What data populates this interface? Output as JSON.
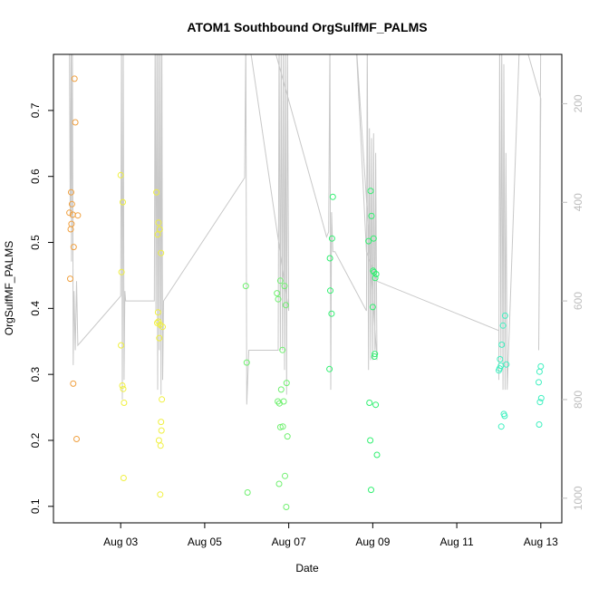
{
  "chart_data": {
    "type": "scatter",
    "title": "ATOM1 Southbound OrgSulfMF_PALMS",
    "xlabel": "Date",
    "ylabel": "OrgSulfMF_PALMS",
    "x_ticks": [
      "Aug 03",
      "Aug 05",
      "Aug 07",
      "Aug 09",
      "Aug 11",
      "Aug 13"
    ],
    "x_tick_values": [
      3,
      5,
      7,
      9,
      11,
      13
    ],
    "xlim": [
      1.4,
      13.5
    ],
    "ylim": [
      0.075,
      0.785
    ],
    "y_ticks": [
      0.1,
      0.2,
      0.3,
      0.4,
      0.5,
      0.6,
      0.7
    ],
    "y_tick_labels": [
      "0.1",
      "0.2",
      "0.3",
      "0.4",
      "0.5",
      "0.6",
      "0.7"
    ],
    "right_axis": {
      "label": "",
      "ticks": [
        200,
        400,
        600,
        800,
        1000
      ],
      "tick_labels": [
        "200",
        "400",
        "600",
        "800",
        "1000"
      ],
      "lim": [
        100,
        1050
      ],
      "reversed": true,
      "color": "#bdbdbd"
    },
    "grid": false,
    "legend": "none",
    "series": [
      {
        "color": "#f0a040",
        "points": [
          [
            1.9,
            0.748
          ],
          [
            1.92,
            0.682
          ],
          [
            1.82,
            0.576
          ],
          [
            1.84,
            0.558
          ],
          [
            1.78,
            0.545
          ],
          [
            1.86,
            0.542
          ],
          [
            1.98,
            0.541
          ],
          [
            1.83,
            0.528
          ],
          [
            1.81,
            0.52
          ],
          [
            1.88,
            0.493
          ],
          [
            1.8,
            0.445
          ],
          [
            1.87,
            0.286
          ],
          [
            1.95,
            0.202
          ]
        ]
      },
      {
        "color": "#f0f040",
        "points": [
          [
            3.0,
            0.602
          ],
          [
            3.05,
            0.561
          ],
          [
            3.02,
            0.455
          ],
          [
            3.01,
            0.344
          ],
          [
            3.04,
            0.283
          ],
          [
            3.06,
            0.278
          ],
          [
            3.08,
            0.257
          ],
          [
            3.07,
            0.143
          ],
          [
            3.85,
            0.576
          ],
          [
            3.9,
            0.53
          ],
          [
            3.93,
            0.52
          ],
          [
            3.88,
            0.512
          ],
          [
            3.96,
            0.484
          ],
          [
            3.89,
            0.394
          ],
          [
            3.87,
            0.378
          ],
          [
            3.9,
            0.38
          ],
          [
            3.94,
            0.375
          ],
          [
            4.0,
            0.372
          ],
          [
            3.92,
            0.355
          ],
          [
            3.98,
            0.262
          ],
          [
            3.96,
            0.228
          ],
          [
            3.97,
            0.215
          ],
          [
            3.91,
            0.2
          ],
          [
            3.95,
            0.192
          ],
          [
            3.94,
            0.118
          ]
        ]
      },
      {
        "color": "#70f070",
        "points": [
          [
            5.98,
            0.434
          ],
          [
            6.0,
            0.318
          ],
          [
            6.02,
            0.121
          ],
          [
            6.72,
            0.423
          ],
          [
            6.8,
            0.442
          ],
          [
            6.9,
            0.434
          ],
          [
            6.75,
            0.414
          ],
          [
            6.93,
            0.405
          ],
          [
            6.85,
            0.337
          ],
          [
            6.95,
            0.287
          ],
          [
            6.82,
            0.277
          ],
          [
            6.74,
            0.259
          ],
          [
            6.88,
            0.259
          ],
          [
            6.78,
            0.256
          ],
          [
            6.8,
            0.22
          ],
          [
            6.86,
            0.221
          ],
          [
            6.97,
            0.206
          ],
          [
            6.91,
            0.146
          ],
          [
            6.77,
            0.134
          ],
          [
            6.94,
            0.099
          ]
        ]
      },
      {
        "color": "#30f070",
        "points": [
          [
            8.05,
            0.569
          ],
          [
            8.03,
            0.506
          ],
          [
            7.98,
            0.476
          ],
          [
            7.99,
            0.427
          ],
          [
            8.02,
            0.392
          ],
          [
            7.97,
            0.308
          ],
          [
            8.95,
            0.578
          ],
          [
            8.97,
            0.54
          ],
          [
            9.02,
            0.506
          ],
          [
            8.9,
            0.502
          ],
          [
            9.01,
            0.457
          ],
          [
            9.03,
            0.455
          ],
          [
            9.08,
            0.452
          ],
          [
            9.06,
            0.446
          ],
          [
            9.0,
            0.402
          ],
          [
            9.05,
            0.331
          ],
          [
            9.04,
            0.327
          ],
          [
            8.92,
            0.257
          ],
          [
            9.07,
            0.254
          ],
          [
            8.94,
            0.2
          ],
          [
            9.1,
            0.178
          ],
          [
            8.96,
            0.125
          ]
        ]
      },
      {
        "color": "#40f0c0",
        "points": [
          [
            12.15,
            0.389
          ],
          [
            12.1,
            0.374
          ],
          [
            12.07,
            0.345
          ],
          [
            12.03,
            0.323
          ],
          [
            12.18,
            0.315
          ],
          [
            12.05,
            0.313
          ],
          [
            12.02,
            0.309
          ],
          [
            12.0,
            0.306
          ],
          [
            12.12,
            0.24
          ],
          [
            12.14,
            0.237
          ],
          [
            12.06,
            0.221
          ],
          [
            13.0,
            0.312
          ],
          [
            12.97,
            0.304
          ],
          [
            12.95,
            0.288
          ],
          [
            13.01,
            0.264
          ],
          [
            12.98,
            0.258
          ],
          [
            12.96,
            0.224
          ]
        ]
      }
    ],
    "altitude_line": {
      "color": "#c8c8c8",
      "points": [
        [
          1.78,
          70
        ],
        [
          1.8,
          430
        ],
        [
          1.82,
          70
        ],
        [
          1.83,
          520
        ],
        [
          1.85,
          70
        ],
        [
          1.87,
          730
        ],
        [
          1.89,
          580
        ],
        [
          1.92,
          700
        ],
        [
          1.95,
          560
        ],
        [
          1.98,
          690
        ],
        [
          3.0,
          590
        ],
        [
          3.02,
          70
        ],
        [
          3.04,
          800
        ],
        [
          3.06,
          70
        ],
        [
          3.08,
          760
        ],
        [
          3.1,
          580
        ],
        [
          3.12,
          600
        ],
        [
          3.8,
          600
        ],
        [
          3.82,
          70
        ],
        [
          3.84,
          620
        ],
        [
          3.86,
          70
        ],
        [
          3.88,
          780
        ],
        [
          3.9,
          70
        ],
        [
          3.92,
          700
        ],
        [
          3.94,
          70
        ],
        [
          3.96,
          790
        ],
        [
          3.98,
          70
        ],
        [
          4.0,
          760
        ],
        [
          4.02,
          600
        ],
        [
          5.95,
          350
        ],
        [
          5.98,
          70
        ],
        [
          6.0,
          810
        ],
        [
          6.05,
          700
        ],
        [
          6.75,
          700
        ],
        [
          6.77,
          70
        ],
        [
          6.8,
          700
        ],
        [
          6.82,
          70
        ],
        [
          6.85,
          700
        ],
        [
          6.87,
          70
        ],
        [
          6.9,
          740
        ],
        [
          6.92,
          70
        ],
        [
          6.95,
          790
        ],
        [
          6.97,
          70
        ],
        [
          7.0,
          620
        ],
        [
          6.0,
          40
        ],
        [
          6.5,
          40
        ],
        [
          7.9,
          470
        ],
        [
          7.95,
          460
        ],
        [
          7.98,
          70
        ],
        [
          8.0,
          780
        ],
        [
          8.02,
          420
        ],
        [
          8.05,
          500
        ],
        [
          8.1,
          500
        ],
        [
          8.85,
          620
        ],
        [
          8.87,
          70
        ],
        [
          8.9,
          740
        ],
        [
          8.92,
          250
        ],
        [
          8.95,
          720
        ],
        [
          8.97,
          270
        ],
        [
          9.0,
          720
        ],
        [
          9.02,
          260
        ],
        [
          9.05,
          700
        ],
        [
          9.07,
          300
        ],
        [
          9.1,
          720
        ],
        [
          8.6,
          70
        ],
        [
          8.85,
          500
        ],
        [
          9.1,
          560
        ],
        [
          12.0,
          660
        ],
        [
          12.0,
          760
        ],
        [
          12.02,
          70
        ],
        [
          12.05,
          720
        ],
        [
          12.07,
          70
        ],
        [
          12.1,
          780
        ],
        [
          12.12,
          120
        ],
        [
          12.15,
          780
        ],
        [
          12.17,
          300
        ],
        [
          12.2,
          780
        ],
        [
          12.5,
          60
        ],
        [
          12.6,
          70
        ],
        [
          13.0,
          190
        ],
        [
          12.95,
          700
        ],
        [
          13.0,
          60
        ]
      ]
    }
  }
}
